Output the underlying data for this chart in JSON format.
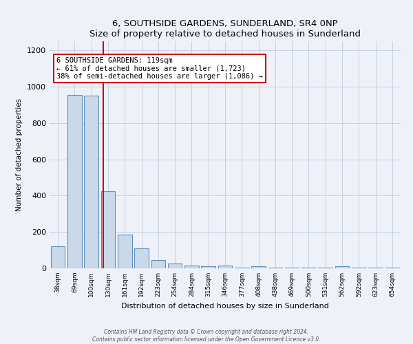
{
  "title": "6, SOUTHSIDE GARDENS, SUNDERLAND, SR4 0NP",
  "subtitle": "Size of property relative to detached houses in Sunderland",
  "xlabel": "Distribution of detached houses by size in Sunderland",
  "ylabel": "Number of detached properties",
  "bar_labels": [
    "38sqm",
    "69sqm",
    "100sqm",
    "130sqm",
    "161sqm",
    "192sqm",
    "223sqm",
    "254sqm",
    "284sqm",
    "315sqm",
    "346sqm",
    "377sqm",
    "408sqm",
    "438sqm",
    "469sqm",
    "500sqm",
    "531sqm",
    "562sqm",
    "592sqm",
    "623sqm",
    "654sqm"
  ],
  "bar_values": [
    120,
    955,
    950,
    425,
    185,
    110,
    45,
    25,
    15,
    10,
    15,
    5,
    12,
    5,
    3,
    5,
    2,
    12,
    2,
    5,
    2
  ],
  "bar_color": "#c9d9ea",
  "bar_edge_color": "#6090b8",
  "red_line_color": "#cc0000",
  "annotation_title": "6 SOUTHSIDE GARDENS: 119sqm",
  "annotation_line1": "← 61% of detached houses are smaller (1,723)",
  "annotation_line2": "38% of semi-detached houses are larger (1,086) →",
  "annotation_box_facecolor": "#ffffff",
  "annotation_box_edgecolor": "#cc0000",
  "ylim": [
    0,
    1250
  ],
  "yticks": [
    0,
    200,
    400,
    600,
    800,
    1000,
    1200
  ],
  "footer_line1": "Contains HM Land Registry data © Crown copyright and database right 2024.",
  "footer_line2": "Contains public sector information licensed under the Open Government Licence v3.0.",
  "bg_color": "#eef2f8",
  "grid_color": "#c5cfe0"
}
